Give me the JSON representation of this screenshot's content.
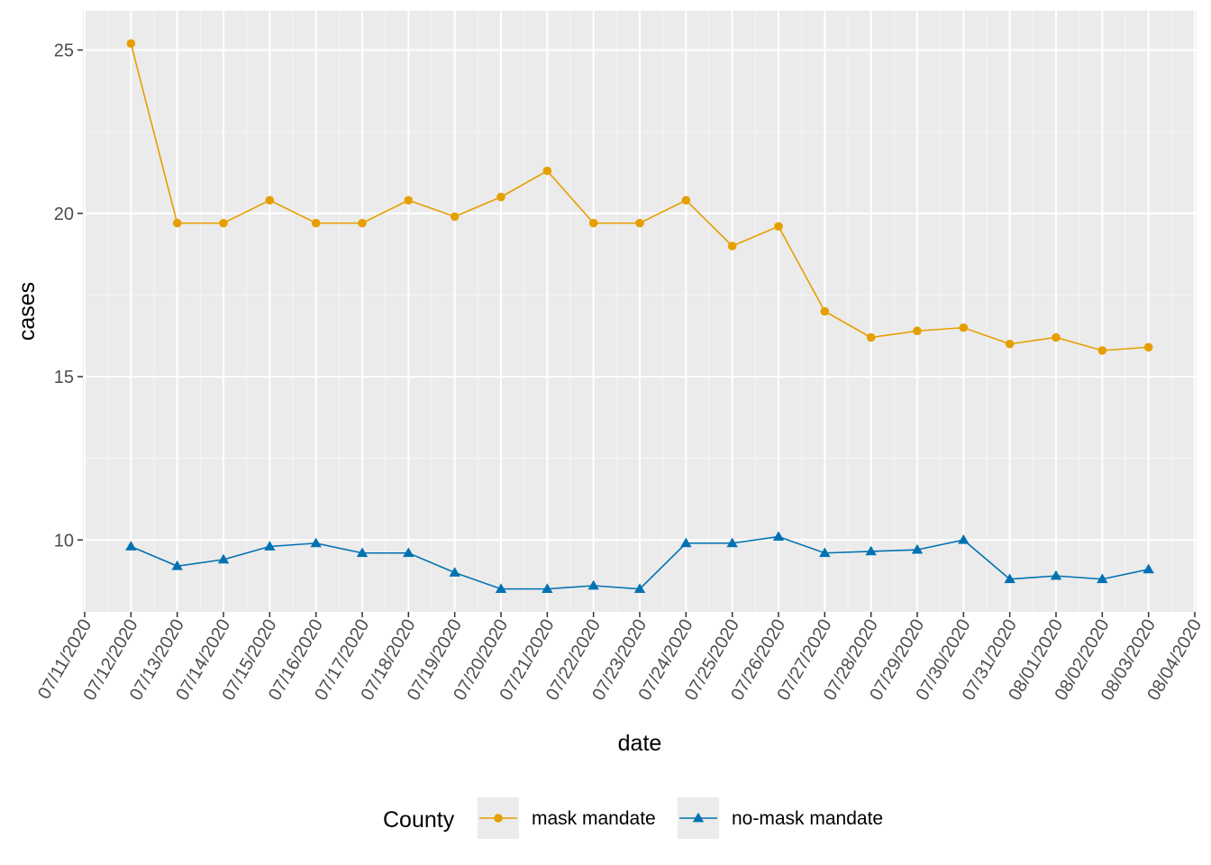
{
  "chart_data": {
    "type": "line",
    "xlabel": "date",
    "ylabel": "cases",
    "x_tick_labels": [
      "07/11/2020",
      "07/12/2020",
      "07/13/2020",
      "07/14/2020",
      "07/15/2020",
      "07/16/2020",
      "07/17/2020",
      "07/18/2020",
      "07/19/2020",
      "07/20/2020",
      "07/21/2020",
      "07/22/2020",
      "07/23/2020",
      "07/24/2020",
      "07/25/2020",
      "07/26/2020",
      "07/27/2020",
      "07/28/2020",
      "07/29/2020",
      "07/30/2020",
      "07/31/2020",
      "08/01/2020",
      "08/02/2020",
      "08/03/2020",
      "08/04/2020"
    ],
    "y_ticks": [
      10,
      15,
      20,
      25
    ],
    "ylim": [
      7.8,
      26.2
    ],
    "grid": true,
    "legend": {
      "title": "County",
      "position": "bottom"
    },
    "x": [
      "07/12/2020",
      "07/13/2020",
      "07/14/2020",
      "07/15/2020",
      "07/16/2020",
      "07/17/2020",
      "07/18/2020",
      "07/19/2020",
      "07/20/2020",
      "07/21/2020",
      "07/22/2020",
      "07/23/2020",
      "07/24/2020",
      "07/25/2020",
      "07/26/2020",
      "07/27/2020",
      "07/28/2020",
      "07/29/2020",
      "07/30/2020",
      "07/31/2020",
      "08/01/2020",
      "08/02/2020",
      "08/03/2020"
    ],
    "series": [
      {
        "name": "mask mandate",
        "color": "#E69F00",
        "marker": "circle",
        "values": [
          25.2,
          19.7,
          19.7,
          20.4,
          19.7,
          19.7,
          20.4,
          19.9,
          20.5,
          21.3,
          19.7,
          19.7,
          20.4,
          19.0,
          19.6,
          17.0,
          16.2,
          16.4,
          16.5,
          16.0,
          16.2,
          15.8,
          15.9
        ]
      },
      {
        "name": "no-mask mandate",
        "color": "#0072B2",
        "marker": "triangle",
        "values": [
          9.8,
          9.2,
          9.4,
          9.8,
          9.9,
          9.6,
          9.6,
          9.0,
          8.5,
          8.5,
          8.6,
          8.5,
          9.9,
          9.9,
          10.1,
          9.6,
          9.65,
          9.7,
          10.0,
          8.8,
          8.9,
          8.8,
          9.1
        ]
      }
    ]
  }
}
